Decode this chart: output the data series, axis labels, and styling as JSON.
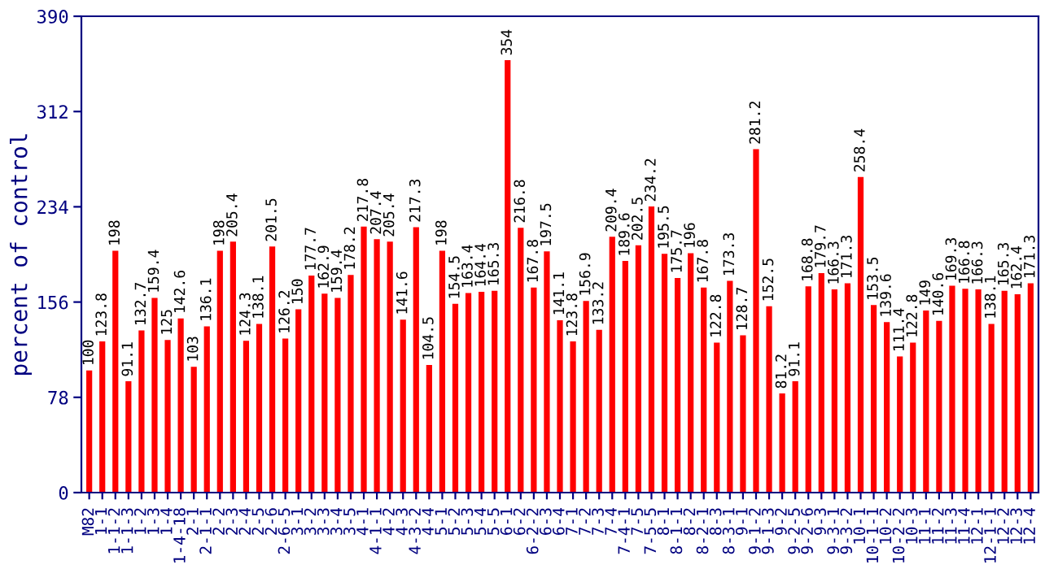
{
  "chart_data": {
    "type": "bar",
    "ylabel": "percent of control",
    "categories": [
      "M82",
      "1-1",
      "1-1-2",
      "1-1-3",
      "1-2",
      "1-3",
      "1-4",
      "1-4-18",
      "2-1",
      "2-1-1",
      "2-2",
      "2-3",
      "2-4",
      "2-5",
      "2-6",
      "2-6-5",
      "3-1",
      "3-2",
      "3-3",
      "3-4",
      "3-5",
      "4-1",
      "4-1-1",
      "4-2",
      "4-3",
      "4-3-2",
      "4-4",
      "5-1",
      "5-2",
      "5-3",
      "5-4",
      "5-5",
      "6-1",
      "6-2",
      "6-2-2",
      "6-3",
      "6-4",
      "7-1",
      "7-2",
      "7-3",
      "7-4",
      "7-4-1",
      "7-5",
      "7-5-5",
      "8-1",
      "8-1-1",
      "8-2",
      "8-2-1",
      "8-3",
      "8-3-1",
      "9-1",
      "9-1-2",
      "9-1-3",
      "9-2",
      "9-2-5",
      "9-2-6",
      "9-3",
      "9-3-1",
      "9-3-2",
      "10-1",
      "10-1-1",
      "10-2",
      "10-2-2",
      "10-3",
      "11-1",
      "11-2",
      "11-3",
      "11-4",
      "12-1",
      "12-1-1",
      "12-2",
      "12-3",
      "12-4"
    ],
    "values": [
      100,
      123.8,
      198,
      91.1,
      132.7,
      159.4,
      125,
      142.6,
      103,
      136.1,
      198,
      205.4,
      124.3,
      138.1,
      201.5,
      126.2,
      150,
      177.7,
      162.9,
      159.4,
      178.2,
      217.8,
      207.4,
      205.4,
      141.6,
      217.3,
      104.5,
      198,
      154.5,
      163.4,
      164.4,
      165.3,
      354,
      216.8,
      167.8,
      197.5,
      141.1,
      123.8,
      156.9,
      133.2,
      209.4,
      189.6,
      202.5,
      234.2,
      195.5,
      175.7,
      196,
      167.8,
      122.8,
      173.3,
      128.7,
      281.2,
      152.5,
      81.2,
      91.1,
      168.8,
      179.7,
      166.3,
      171.3,
      258.4,
      153.5,
      139.6,
      111.4,
      122.8,
      149,
      140.6,
      169.3,
      166.8,
      166.3,
      138.1,
      165.3,
      162.4,
      171.3
    ],
    "color": "#ff0000",
    "ylim": [
      0,
      390
    ],
    "yticks": [
      0,
      78,
      156,
      234,
      312,
      390
    ],
    "data_labels": true,
    "grid": false
  }
}
